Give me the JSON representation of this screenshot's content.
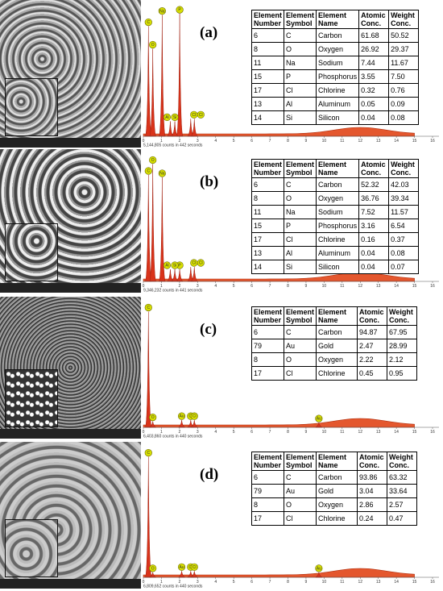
{
  "xticks": [
    0,
    1,
    2,
    3,
    4,
    5,
    6,
    7,
    8,
    9,
    10,
    11,
    12,
    13,
    14,
    15,
    16
  ],
  "panels": [
    {
      "label": "(a)",
      "counts": "5,144,805 counts in 442 seconds",
      "peaks": [
        "C",
        "O",
        "Na",
        "P",
        "Al",
        "Si",
        "Cl",
        "Cl"
      ],
      "table": {
        "header": [
          "Element Number",
          "Element Symbol",
          "Element Name",
          "Atomic Conc.",
          "Weight Conc."
        ],
        "rows": [
          [
            "6",
            "C",
            "Carbon",
            "61.68",
            "50.52"
          ],
          [
            "8",
            "O",
            "Oxygen",
            "26.92",
            "29.37"
          ],
          [
            "11",
            "Na",
            "Sodium",
            "7.44",
            "11.67"
          ],
          [
            "15",
            "P",
            "Phosphorus",
            "3.55",
            "7.50"
          ],
          [
            "17",
            "Cl",
            "Chlorine",
            "0.32",
            "0.76"
          ],
          [
            "13",
            "Al",
            "Aluminum",
            "0.05",
            "0.09"
          ],
          [
            "14",
            "Si",
            "Silicon",
            "0.04",
            "0.08"
          ]
        ]
      }
    },
    {
      "label": "(b)",
      "counts": "9,346,232 counts in 441 seconds",
      "peaks": [
        "C",
        "O",
        "Na",
        "P",
        "Al",
        "Si",
        "Cl",
        "Cl"
      ],
      "table": {
        "header": [
          "Element Number",
          "Element Symbol",
          "Element Name",
          "Atomic Conc.",
          "Weight Conc."
        ],
        "rows": [
          [
            "6",
            "C",
            "Carbon",
            "52.32",
            "42.03"
          ],
          [
            "8",
            "O",
            "Oxygen",
            "36.76",
            "39.34"
          ],
          [
            "11",
            "Na",
            "Sodium",
            "7.52",
            "11.57"
          ],
          [
            "15",
            "P",
            "Phosphorus",
            "3.16",
            "6.54"
          ],
          [
            "17",
            "Cl",
            "Chlorine",
            "0.16",
            "0.37"
          ],
          [
            "13",
            "Al",
            "Aluminum",
            "0.04",
            "0.08"
          ],
          [
            "14",
            "Si",
            "Silicon",
            "0.04",
            "0.07"
          ]
        ]
      }
    },
    {
      "label": "(c)",
      "counts": "6,403,860 counts in 440 seconds",
      "peaks": [
        "C",
        "O",
        "Au",
        "Cl",
        "Cl",
        "Au"
      ],
      "table": {
        "header": [
          "Element Number",
          "Element Symbol",
          "Element Name",
          "Atomic Conc.",
          "Weight Conc."
        ],
        "rows": [
          [
            "6",
            "C",
            "Carbon",
            "94.87",
            "67.95"
          ],
          [
            "79",
            "Au",
            "Gold",
            "2.47",
            "28.99"
          ],
          [
            "8",
            "O",
            "Oxygen",
            "2.22",
            "2.12"
          ],
          [
            "17",
            "Cl",
            "Chlorine",
            "0.45",
            "0.95"
          ]
        ]
      }
    },
    {
      "label": "(d)",
      "counts": "6,809,652 counts in 440 seconds",
      "peaks": [
        "C",
        "O",
        "Au",
        "Cl",
        "Cl",
        "Au"
      ],
      "table": {
        "header": [
          "Element Number",
          "Element Symbol",
          "Element Name",
          "Atomic Conc.",
          "Weight Conc."
        ],
        "rows": [
          [
            "6",
            "C",
            "Carbon",
            "93.86",
            "63.32"
          ],
          [
            "79",
            "Au",
            "Gold",
            "3.04",
            "33.64"
          ],
          [
            "8",
            "O",
            "Oxygen",
            "2.86",
            "2.57"
          ],
          [
            "17",
            "Cl",
            "Chlorine",
            "0.24",
            "0.47"
          ]
        ]
      }
    }
  ]
}
